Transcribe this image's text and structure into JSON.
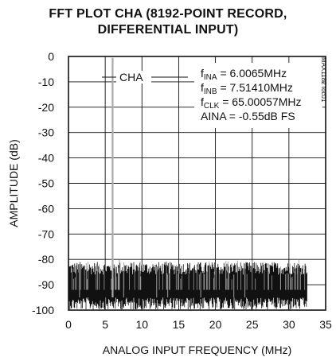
{
  "chart_data": {
    "type": "line",
    "title_lines": [
      "FFT PLOT CHA (8192-POINT RECORD,",
      "DIFFERENTIAL INPUT)"
    ],
    "xlabel": "ANALOG INPUT FREQUENCY (MHz)",
    "ylabel": "AMPLITUDE (dB)",
    "xlim": [
      0,
      35
    ],
    "ylim": [
      -100,
      0
    ],
    "xticks": [
      "0",
      "5",
      "10",
      "15",
      "20",
      "25",
      "30",
      "35"
    ],
    "xtick_values": [
      0,
      5,
      10,
      15,
      20,
      25,
      30,
      35
    ],
    "yticks": [
      "0",
      "-10",
      "-20",
      "-30",
      "-40",
      "-50",
      "-60",
      "-70",
      "-80",
      "-90",
      "-100"
    ],
    "ytick_values": [
      0,
      -10,
      -20,
      -30,
      -40,
      -50,
      -60,
      -70,
      -80,
      -90,
      -100
    ],
    "grid": true,
    "series": [
      {
        "name": "CHA",
        "color": "#111111",
        "noise_floor_db": -92,
        "data_end_mhz": 32.5,
        "peaks": [
          {
            "x": 6.0065,
            "y": -0.55
          },
          {
            "x": 7.5141,
            "y": -85
          },
          {
            "x": 1.5,
            "y": -83
          },
          {
            "x": 12.0,
            "y": -83
          },
          {
            "x": 18.0,
            "y": -85
          },
          {
            "x": 24.0,
            "y": -84
          },
          {
            "x": 13.5,
            "y": -86
          },
          {
            "x": 22.5,
            "y": -86
          }
        ]
      }
    ],
    "annotations": {
      "series_label": "CHA",
      "lines": [
        {
          "name": "fina",
          "prefix": "f",
          "sub": "INA",
          "suffix": " = 6.0065MHz"
        },
        {
          "name": "finb",
          "prefix": "f",
          "sub": "INB",
          "suffix": " = 7.51410MHz"
        },
        {
          "name": "fclk",
          "prefix": "f",
          "sub": "CLK",
          "suffix": " = 65.00057MHz"
        },
        {
          "name": "aina",
          "prefix": "AINA = -0.55dB FS",
          "sub": "",
          "suffix": ""
        }
      ],
      "figure_code": "MAX1182 toc01"
    }
  }
}
